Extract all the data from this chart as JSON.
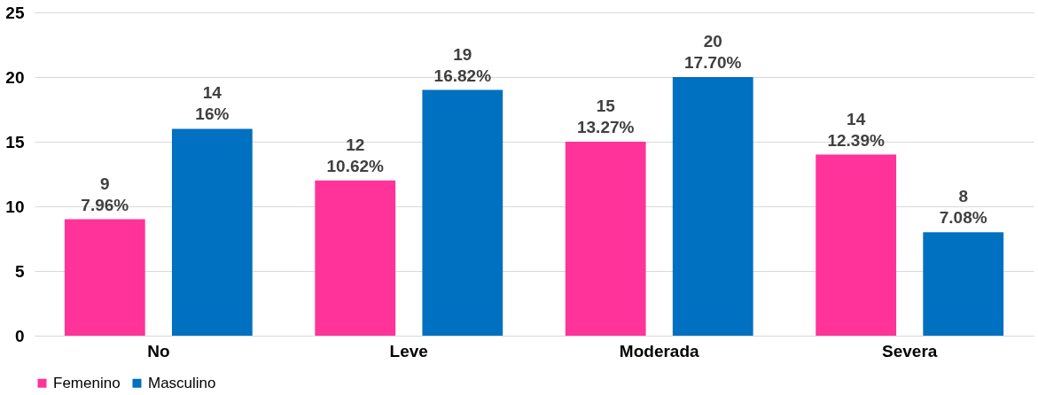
{
  "chart_data": {
    "type": "bar",
    "categories": [
      "No",
      "Leve",
      "Moderada",
      "Severa"
    ],
    "series": [
      {
        "name": "Femenino",
        "color": "#ff3399",
        "values": [
          9,
          12,
          15,
          14
        ],
        "value_labels": [
          "9\n7.96%",
          "12\n10.62%",
          "15\n13.27%",
          "14\n12.39%"
        ]
      },
      {
        "name": "Masculino",
        "color": "#0070c0",
        "values": [
          16,
          19,
          20,
          8
        ],
        "value_labels": [
          "14\n16%",
          "19\n16.82%",
          "20\n17.70%",
          "8\n7.08%"
        ]
      }
    ],
    "ylim": [
      0,
      25
    ],
    "yticks": [
      0,
      5,
      10,
      15,
      20,
      25
    ],
    "grid": "y",
    "legend": "bottom"
  }
}
